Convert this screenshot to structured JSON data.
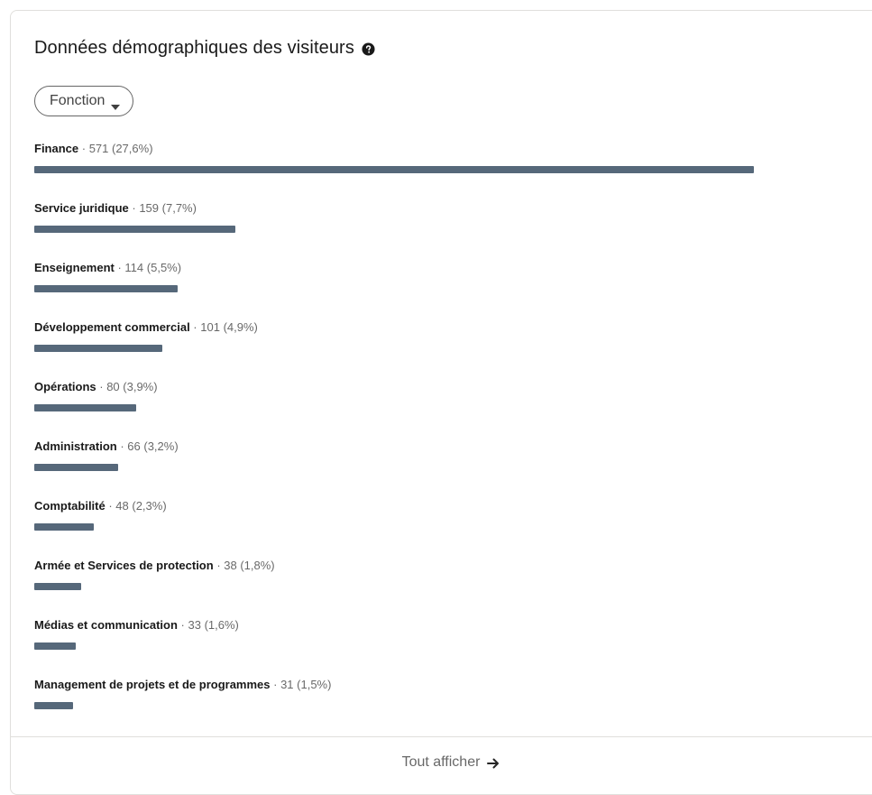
{
  "card": {
    "title": "Données démographiques des visiteurs",
    "help_icon": "question-circle-icon",
    "filter": {
      "label": "Fonction",
      "icon": "caret-down-icon"
    },
    "show_all": {
      "label": "Tout afficher",
      "icon": "arrow-right-icon"
    }
  },
  "colors": {
    "bar": "#56687a",
    "text": "#000000",
    "border": "#e0dfdc"
  },
  "rows": [
    {
      "name": "Finance",
      "sep": " · ",
      "count": "571",
      "pct": " (27,6%)",
      "fraction": 0.276
    },
    {
      "name": "Service juridique",
      "sep": " · ",
      "count": "159",
      "pct": " (7,7%)",
      "fraction": 0.077
    },
    {
      "name": "Enseignement",
      "sep": " · ",
      "count": "114",
      "pct": " (5,5%)",
      "fraction": 0.055
    },
    {
      "name": "Développement commercial",
      "sep": " · ",
      "count": "101",
      "pct": " (4,9%)",
      "fraction": 0.049
    },
    {
      "name": "Opérations",
      "sep": " · ",
      "count": "80",
      "pct": " (3,9%)",
      "fraction": 0.039
    },
    {
      "name": "Administration",
      "sep": " · ",
      "count": "66",
      "pct": " (3,2%)",
      "fraction": 0.032
    },
    {
      "name": "Comptabilité",
      "sep": " · ",
      "count": "48",
      "pct": " (2,3%)",
      "fraction": 0.023
    },
    {
      "name": "Armée et Services de protection",
      "sep": " · ",
      "count": "38",
      "pct": " (1,8%)",
      "fraction": 0.018
    },
    {
      "name": "Médias et communication",
      "sep": " · ",
      "count": "33",
      "pct": " (1,6%)",
      "fraction": 0.016
    },
    {
      "name": "Management de projets et de programmes",
      "sep": " · ",
      "count": "31",
      "pct": " (1,5%)",
      "fraction": 0.015
    }
  ]
}
